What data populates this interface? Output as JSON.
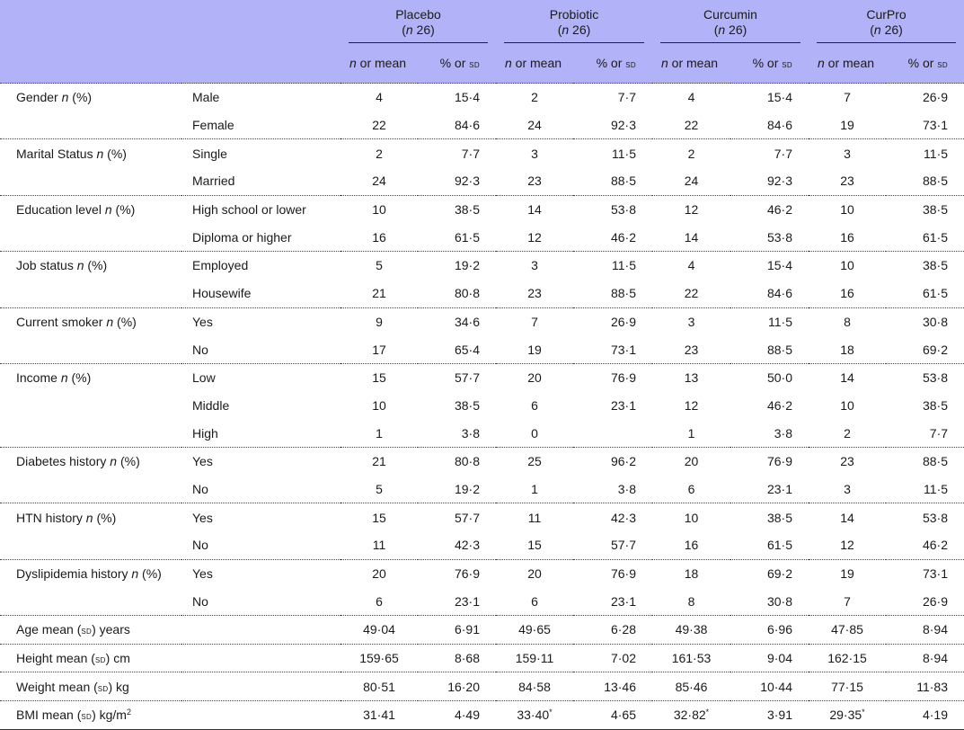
{
  "header": {
    "groups": [
      {
        "name": "Placebo",
        "n_prefix": "n",
        "n_value": "26"
      },
      {
        "name": "Probiotic",
        "n_prefix": "n",
        "n_value": "26"
      },
      {
        "name": "Curcumin",
        "n_prefix": "n",
        "n_value": "26"
      },
      {
        "name": "CurPro",
        "n_prefix": "n",
        "n_value": "26"
      }
    ],
    "sub_n": "n",
    "sub_n_rest": " or mean",
    "sub_pct": "% or ",
    "sub_sd": "sd"
  },
  "rows": [
    {
      "label": "Gender ",
      "label_it": "n",
      "label_tail": " (%)",
      "cat": "Male",
      "v": [
        "4",
        "15·4",
        "2",
        "7·7",
        "4",
        "15·4",
        "7",
        "26·9"
      ]
    },
    {
      "label": "",
      "label_it": "",
      "label_tail": "",
      "cat": "Female",
      "v": [
        "22",
        "84·6",
        "24",
        "92·3",
        "22",
        "84·6",
        "19",
        "73·1"
      ]
    },
    {
      "label": "Marital Status ",
      "label_it": "n",
      "label_tail": " (%)",
      "cat": "Single",
      "v": [
        "2",
        "7·7",
        "3",
        "11·5",
        "2",
        "7·7",
        "3",
        "11·5"
      ]
    },
    {
      "label": "",
      "label_it": "",
      "label_tail": "",
      "cat": "Married",
      "v": [
        "24",
        "92·3",
        "23",
        "88·5",
        "24",
        "92·3",
        "23",
        "88·5"
      ]
    },
    {
      "label": "Education level ",
      "label_it": "n",
      "label_tail": " (%)",
      "cat": "High school or lower",
      "v": [
        "10",
        "38·5",
        "14",
        "53·8",
        "12",
        "46·2",
        "10",
        "38·5"
      ]
    },
    {
      "label": "",
      "label_it": "",
      "label_tail": "",
      "cat": "Diploma or higher",
      "v": [
        "16",
        "61·5",
        "12",
        "46·2",
        "14",
        "53·8",
        "16",
        "61·5"
      ]
    },
    {
      "label": "Job status ",
      "label_it": "n",
      "label_tail": " (%)",
      "cat": "Employed",
      "v": [
        "5",
        "19·2",
        "3",
        "11·5",
        "4",
        "15·4",
        "10",
        "38·5"
      ]
    },
    {
      "label": "",
      "label_it": "",
      "label_tail": "",
      "cat": "Housewife",
      "v": [
        "21",
        "80·8",
        "23",
        "88·5",
        "22",
        "84·6",
        "16",
        "61·5"
      ]
    },
    {
      "label": "Current smoker ",
      "label_it": "n",
      "label_tail": " (%)",
      "cat": "Yes",
      "v": [
        "9",
        "34·6",
        "7",
        "26·9",
        "3",
        "11·5",
        "8",
        "30·8"
      ]
    },
    {
      "label": "",
      "label_it": "",
      "label_tail": "",
      "cat": "No",
      "v": [
        "17",
        "65·4",
        "19",
        "73·1",
        "23",
        "88·5",
        "18",
        "69·2"
      ]
    },
    {
      "label": "Income ",
      "label_it": "n",
      "label_tail": " (%)",
      "cat": "Low",
      "v": [
        "15",
        "57·7",
        "20",
        "76·9",
        "13",
        "50·0",
        "14",
        "53·8"
      ]
    },
    {
      "label": "",
      "label_it": "",
      "label_tail": "",
      "cat": "Middle",
      "v": [
        "10",
        "38·5",
        "6",
        "23·1",
        "12",
        "46·2",
        "10",
        "38·5"
      ]
    },
    {
      "label": "",
      "label_it": "",
      "label_tail": "",
      "cat": "High",
      "v": [
        "1",
        "3·8",
        "0",
        "",
        "1",
        "3·8",
        "2",
        "7·7"
      ]
    },
    {
      "label": "Diabetes history ",
      "label_it": "n",
      "label_tail": " (%)",
      "cat": "Yes",
      "v": [
        "21",
        "80·8",
        "25",
        "96·2",
        "20",
        "76·9",
        "23",
        "88·5"
      ]
    },
    {
      "label": "",
      "label_it": "",
      "label_tail": "",
      "cat": "No",
      "v": [
        "5",
        "19·2",
        "1",
        "3·8",
        "6",
        "23·1",
        "3",
        "11·5"
      ]
    },
    {
      "label": "HTN history ",
      "label_it": "n",
      "label_tail": " (%)",
      "cat": "Yes",
      "v": [
        "15",
        "57·7",
        "11",
        "42·3",
        "10",
        "38·5",
        "14",
        "53·8"
      ]
    },
    {
      "label": "",
      "label_it": "",
      "label_tail": "",
      "cat": "No",
      "v": [
        "11",
        "42·3",
        "15",
        "57·7",
        "16",
        "61·5",
        "12",
        "46·2"
      ]
    },
    {
      "label": "Dyslipidemia history ",
      "label_it": "n",
      "label_tail": " (%)",
      "cat": "Yes",
      "v": [
        "20",
        "76·9",
        "20",
        "76·9",
        "18",
        "69·2",
        "19",
        "73·1"
      ]
    },
    {
      "label": "",
      "label_it": "",
      "label_tail": "",
      "cat": "No",
      "v": [
        "6",
        "23·1",
        "6",
        "23·1",
        "8",
        "30·8",
        "7",
        "26·9"
      ]
    }
  ],
  "mean_rows": [
    {
      "label_pre": "Age mean (",
      "label_sc": "sd",
      "label_post": ") years",
      "v": [
        "49·04",
        "6·91",
        "49·65",
        "6·28",
        "49·38",
        "6·96",
        "47·85",
        "8·94"
      ],
      "sup": [
        "",
        "",
        "",
        "",
        "",
        "",
        "",
        ""
      ]
    },
    {
      "label_pre": "Height mean (",
      "label_sc": "sd",
      "label_post": ") cm",
      "v": [
        "159·65",
        "8·68",
        "159·11",
        "7·02",
        "161·53",
        "9·04",
        "162·15",
        "8·94"
      ],
      "sup": [
        "",
        "",
        "",
        "",
        "",
        "",
        "",
        ""
      ]
    },
    {
      "label_pre": "Weight mean (",
      "label_sc": "sd",
      "label_post": ") kg",
      "v": [
        "80·51",
        "16·20",
        "84·58",
        "13·46",
        "85·46",
        "10·44",
        "77·15",
        "11·83"
      ],
      "sup": [
        "",
        "",
        "",
        "",
        "",
        "",
        "",
        ""
      ]
    },
    {
      "label_pre": "BMI mean (",
      "label_sc": "sd",
      "label_post": ") kg/m",
      "label_sup": "2",
      "v": [
        "31·41",
        "4·49",
        "33·40",
        "4·65",
        "32·82",
        "3·91",
        "29·35",
        "4·19"
      ],
      "sup": [
        "",
        "",
        "*",
        "",
        "*",
        "",
        "*",
        ""
      ]
    }
  ],
  "colors": {
    "header_bg": "#b2b2f8"
  }
}
